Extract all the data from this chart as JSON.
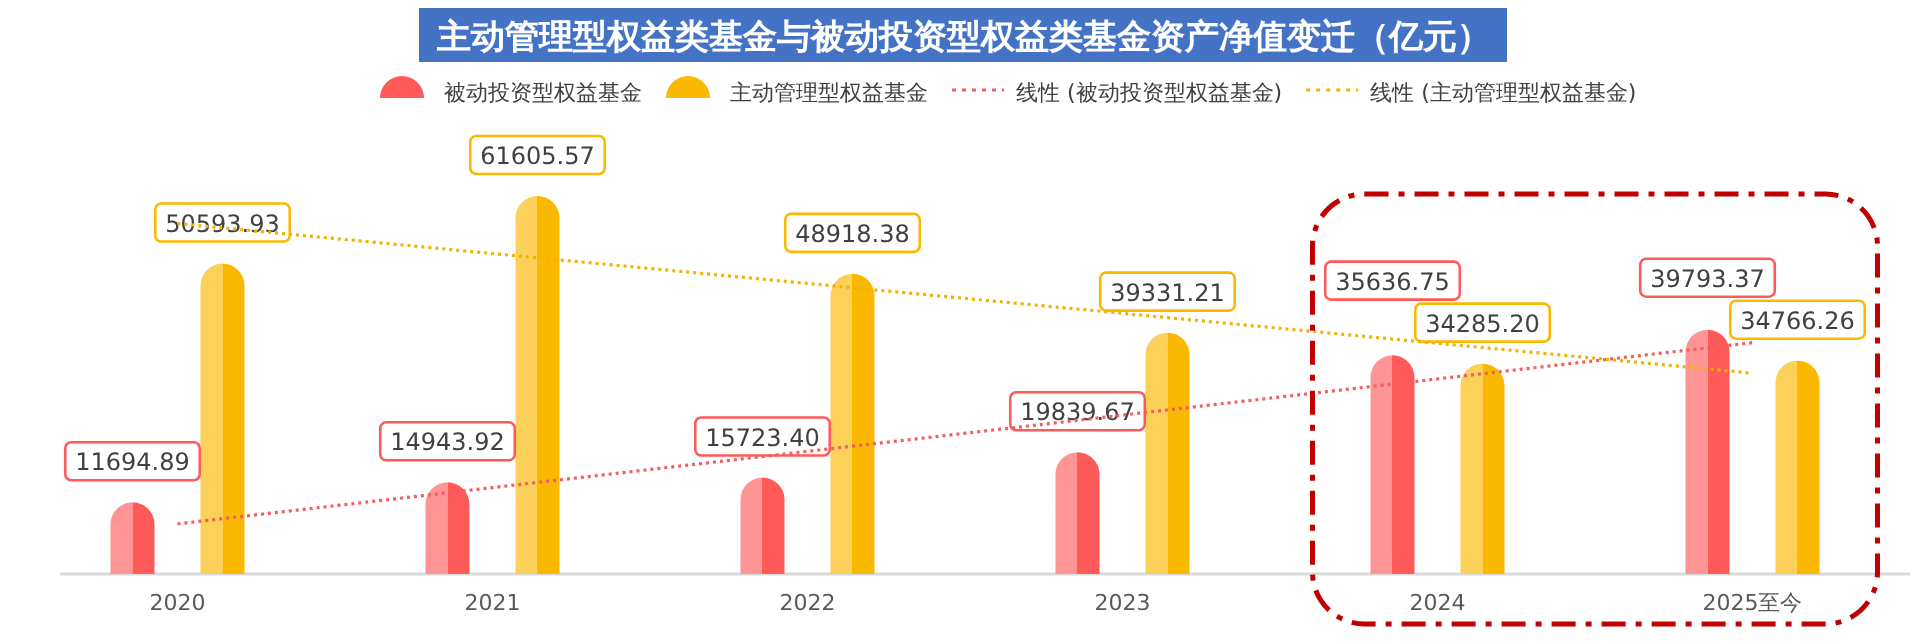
{
  "chart_data": {
    "type": "bar",
    "title": "主动管理型权益类基金与被动投资型权益类基金资产净值变迁（亿元）",
    "categories": [
      "2020",
      "2021",
      "2022",
      "2023",
      "2024",
      "2025至今"
    ],
    "series": [
      {
        "name": "被动投资型权益基金",
        "color": "#ff5a5a",
        "values": [
          11694.89,
          14943.92,
          15723.4,
          19839.67,
          35636.75,
          39793.37
        ],
        "value_labels": [
          "11694.89",
          "14943.92",
          "15723.40",
          "19839.67",
          "35636.75",
          "39793.37"
        ]
      },
      {
        "name": "主动管理型权益基金",
        "color": "#fbb800",
        "values": [
          50593.93,
          61605.57,
          48918.38,
          39331.21,
          34285.2,
          34766.26
        ],
        "value_labels": [
          "50593.93",
          "61605.57",
          "48918.38",
          "39331.21",
          "34285.20",
          "34766.26"
        ]
      },
      {
        "name": "线性 (被动投资型权益基金)",
        "type": "line",
        "line_style": "dotted",
        "color": "#f06060",
        "values": [
          8175,
          14081,
          19986,
          25891,
          31796,
          37702
        ]
      },
      {
        "name": "线性 (主动管理型权益基金)",
        "type": "line",
        "line_style": "dotted",
        "color": "#f0b400",
        "values": [
          57109,
          52232,
          47355,
          42478,
          37602,
          32725
        ]
      }
    ],
    "legend": "top",
    "grid": false
  }
}
